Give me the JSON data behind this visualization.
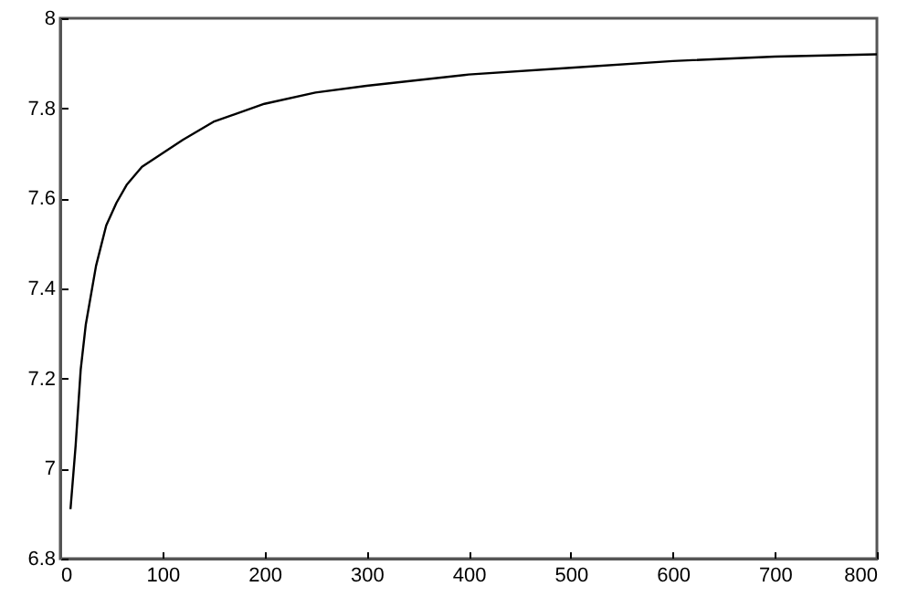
{
  "chart_data": {
    "type": "line",
    "x": [
      10,
      15,
      20,
      25,
      35,
      45,
      55,
      65,
      80,
      100,
      120,
      150,
      200,
      250,
      300,
      400,
      500,
      600,
      700,
      800
    ],
    "series": [
      {
        "color": "#000000",
        "values": [
          6.91,
          7.05,
          7.22,
          7.32,
          7.45,
          7.54,
          7.59,
          7.63,
          7.67,
          7.7,
          7.73,
          7.77,
          7.81,
          7.835,
          7.85,
          7.875,
          7.89,
          7.905,
          7.915,
          7.92
        ]
      }
    ],
    "xlim": [
      0,
      800
    ],
    "xticks": [
      0,
      100,
      200,
      300,
      400,
      500,
      600,
      700,
      800
    ],
    "ylim": [
      6.8,
      8
    ],
    "yticks": [
      6.8,
      7,
      7.2,
      7.4,
      7.6,
      7.8,
      8
    ],
    "grid": false,
    "marker": "none",
    "line_style": "solid"
  }
}
